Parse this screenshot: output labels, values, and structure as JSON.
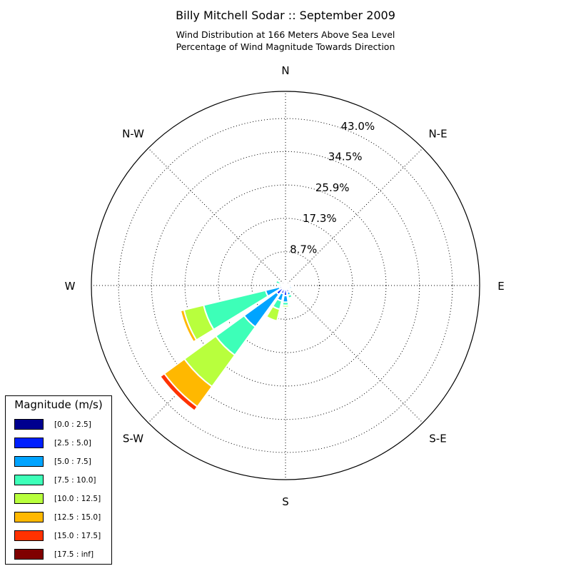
{
  "title": "Billy Mitchell Sodar :: September 2009",
  "subtitle_lines": [
    "Wind Distribution at 166 Meters Above Sea Level",
    "Percentage of Wind Magnitude Towards Direction"
  ],
  "legend": {
    "title": "Magnitude (m/s)",
    "items": [
      {
        "label": "[0.0 : 2.5]",
        "color": "#00008f"
      },
      {
        "label": "[2.5 : 5.0]",
        "color": "#0020ff"
      },
      {
        "label": "[5.0 : 7.5]",
        "color": "#00a4ff"
      },
      {
        "label": "[7.5 : 10.0]",
        "color": "#3dffb8"
      },
      {
        "label": "[10.0 : 12.5]",
        "color": "#b8ff3d"
      },
      {
        "label": "[12.5 : 15.0]",
        "color": "#ffb800"
      },
      {
        "label": "[15.0 : 17.5]",
        "color": "#ff3200"
      },
      {
        "label": "[17.5 : inf]",
        "color": "#800000"
      }
    ]
  },
  "chart_data": {
    "type": "wind-rose",
    "radial_max": 50.0,
    "radial_ticks": [
      8.7,
      17.3,
      25.9,
      34.5,
      43.0
    ],
    "radial_tick_labels": [
      "8.7%",
      "17.3%",
      "25.9%",
      "34.5%",
      "43.0%"
    ],
    "direction_labels": [
      "N",
      "N-E",
      "E",
      "S-E",
      "S",
      "S-W",
      "W",
      "N-W"
    ],
    "grid": true,
    "legend_position": "lower-left",
    "bins": [
      "[0.0 : 2.5]",
      "[2.5 : 5.0]",
      "[5.0 : 7.5]",
      "[7.5 : 10.0]",
      "[10.0 : 12.5]",
      "[12.5 : 15.0]",
      "[15.0 : 17.5]",
      "[17.5 : inf]"
    ],
    "sectors": [
      {
        "direction_deg": 0,
        "values": [
          0.3,
          0.5,
          0,
          0,
          0,
          0,
          0,
          0
        ]
      },
      {
        "direction_deg": 22.5,
        "values": [
          0.3,
          0.4,
          0,
          0,
          0,
          0,
          0,
          0
        ]
      },
      {
        "direction_deg": 45,
        "values": [
          0.2,
          0.3,
          0,
          0,
          0,
          0,
          0,
          0
        ]
      },
      {
        "direction_deg": 67.5,
        "values": [
          0.3,
          0.6,
          0,
          0,
          0,
          0,
          0,
          0
        ]
      },
      {
        "direction_deg": 90,
        "values": [
          0.3,
          1.2,
          0,
          0,
          0,
          0,
          0,
          0
        ]
      },
      {
        "direction_deg": 112.5,
        "values": [
          0.3,
          0.5,
          0.9,
          0,
          0,
          0,
          0,
          0
        ]
      },
      {
        "direction_deg": 135,
        "values": [
          0.3,
          0.7,
          0.5,
          0.4,
          0,
          0,
          0,
          0
        ]
      },
      {
        "direction_deg": 157.5,
        "values": [
          0.3,
          1.5,
          0.8,
          0.8,
          0.3,
          0,
          0,
          0
        ]
      },
      {
        "direction_deg": 180,
        "values": [
          0.4,
          2.2,
          1.7,
          0.8,
          0.5,
          0,
          0,
          0
        ]
      },
      {
        "direction_deg": 202.5,
        "values": [
          0.4,
          1.8,
          1.9,
          2.2,
          3.1,
          0,
          0,
          0
        ]
      },
      {
        "direction_deg": 225,
        "values": [
          0.4,
          2.5,
          10.3,
          9.0,
          10.0,
          6.4,
          1.3,
          0
        ]
      },
      {
        "direction_deg": 247.5,
        "values": [
          0.4,
          1.2,
          3.7,
          16.4,
          5.2,
          0.9,
          0,
          0
        ]
      },
      {
        "direction_deg": 270,
        "values": [
          0.3,
          0.5,
          0.4,
          0.5,
          0,
          0,
          0,
          0
        ]
      },
      {
        "direction_deg": 292.5,
        "values": [
          0.3,
          0.4,
          0.8,
          1.1,
          0,
          0,
          0,
          0
        ]
      },
      {
        "direction_deg": 315,
        "values": [
          0.2,
          0.3,
          0,
          0,
          0,
          0,
          0,
          0
        ]
      },
      {
        "direction_deg": 337.5,
        "values": [
          0.3,
          0.4,
          0,
          0,
          0,
          0,
          0,
          0
        ]
      }
    ]
  }
}
